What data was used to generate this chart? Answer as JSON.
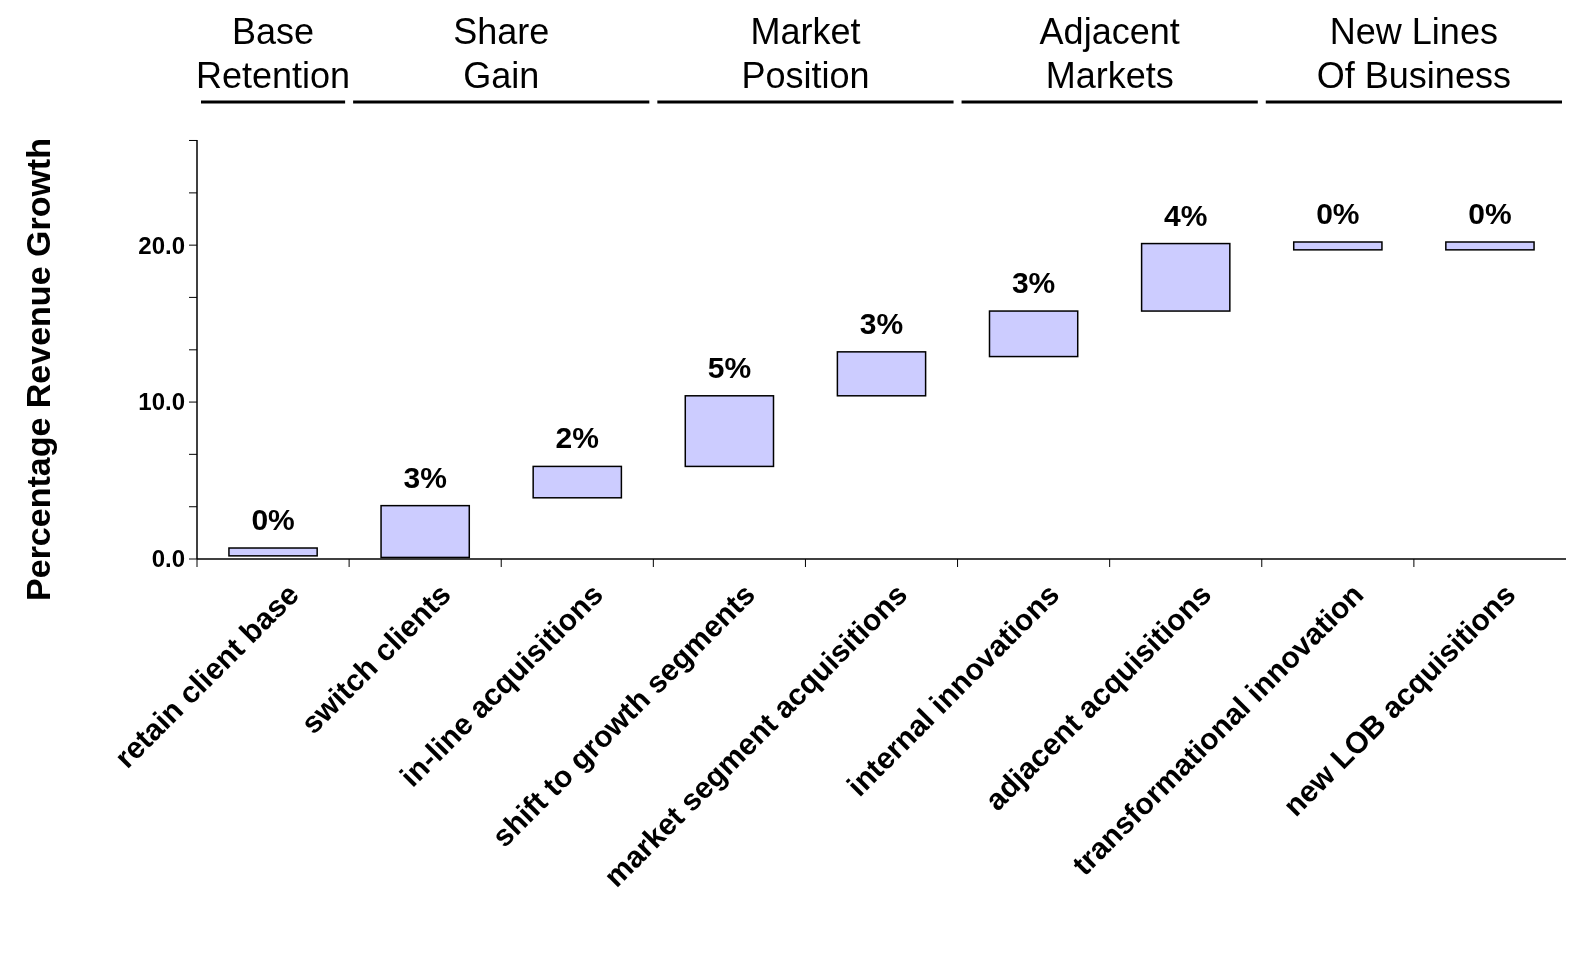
{
  "chart_data": {
    "type": "bar",
    "ylabel": "Percentage Revenue Growth",
    "categories": [
      "retain client base",
      "switch clients",
      "in-line acquisitions",
      "shift to growth segments",
      "market segment acquisitions",
      "internal innovations",
      "adjacent acquisitions",
      "transformational innovation",
      "new LOB acquisitions"
    ],
    "base": [
      0.2,
      0.1,
      3.9,
      5.9,
      10.4,
      12.9,
      15.8,
      19.7,
      19.7
    ],
    "values": [
      0.5,
      3.3,
      2.0,
      4.5,
      2.8,
      2.9,
      4.3,
      0.5,
      0.5
    ],
    "value_labels": [
      "0%",
      "3%",
      "2%",
      "5%",
      "3%",
      "3%",
      "4%",
      "0%",
      "0%"
    ],
    "color": "#ccccff",
    "ylim": [
      0,
      26.7
    ],
    "yticks": [
      {
        "value": 0,
        "label": "0.0"
      },
      {
        "value": 3.33,
        "label": null
      },
      {
        "value": 6.67,
        "label": null
      },
      {
        "value": 10,
        "label": "10.0"
      },
      {
        "value": 13.33,
        "label": null
      },
      {
        "value": 16.67,
        "label": null
      },
      {
        "value": 20,
        "label": "20.0"
      },
      {
        "value": 23.33,
        "label": null
      },
      {
        "value": 26.67,
        "label": null
      }
    ],
    "annotations": [
      "Base Retention",
      "Share Gain",
      "Market Position",
      "Adjacent Markets",
      "New Lines Of Business"
    ],
    "grid": false
  }
}
